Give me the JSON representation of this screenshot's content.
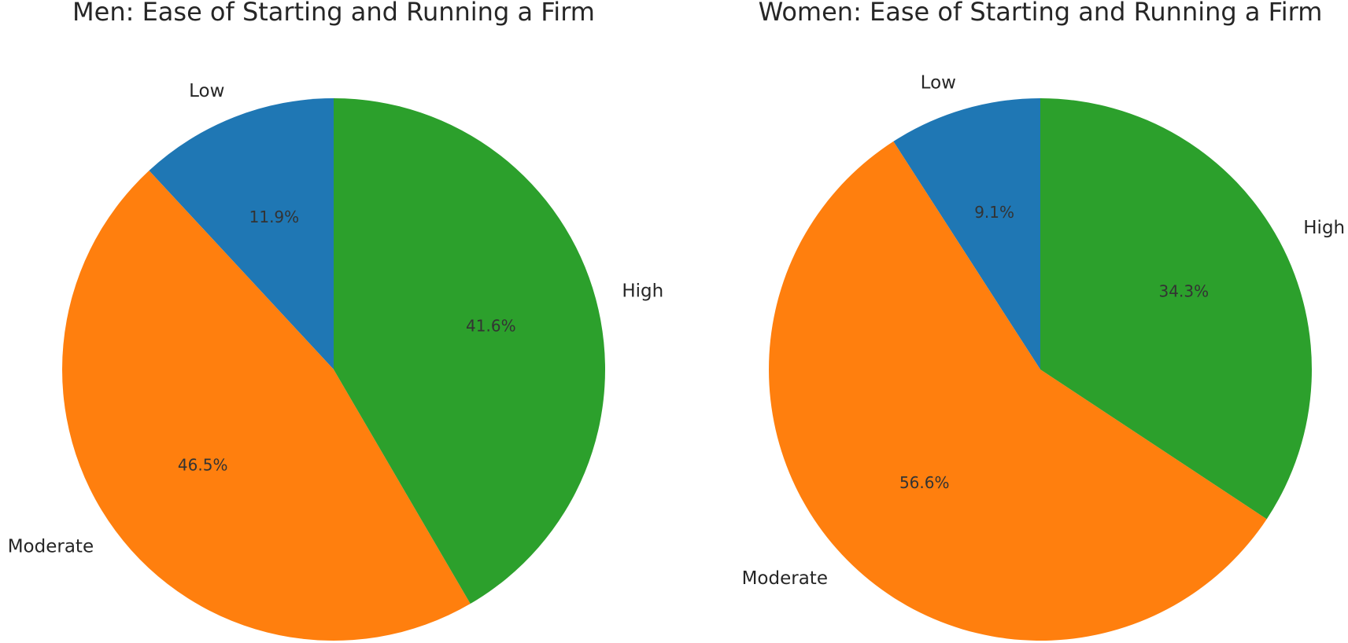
{
  "chart_data": [
    {
      "type": "pie",
      "title": "Men: Ease of Starting and Running a Firm",
      "slices": [
        {
          "label": "Low",
          "value": 11.9,
          "value_label": "11.9%",
          "color": "#1f77b4"
        },
        {
          "label": "Moderate",
          "value": 46.5,
          "value_label": "46.5%",
          "color": "#ff7f0e"
        },
        {
          "label": "High",
          "value": 41.6,
          "value_label": "41.6%",
          "color": "#2ca02c"
        }
      ],
      "start_angle": "90 degrees (top)",
      "direction": "counterclockwise",
      "legend": "none"
    },
    {
      "type": "pie",
      "title": "Women: Ease of Starting and Running a Firm",
      "slices": [
        {
          "label": "Low",
          "value": 9.1,
          "value_label": "9.1%",
          "color": "#1f77b4"
        },
        {
          "label": "Moderate",
          "value": 56.6,
          "value_label": "56.6%",
          "color": "#ff7f0e"
        },
        {
          "label": "High",
          "value": 34.3,
          "value_label": "34.3%",
          "color": "#2ca02c"
        }
      ],
      "start_angle": "90 degrees (top)",
      "direction": "counterclockwise",
      "legend": "none"
    }
  ]
}
